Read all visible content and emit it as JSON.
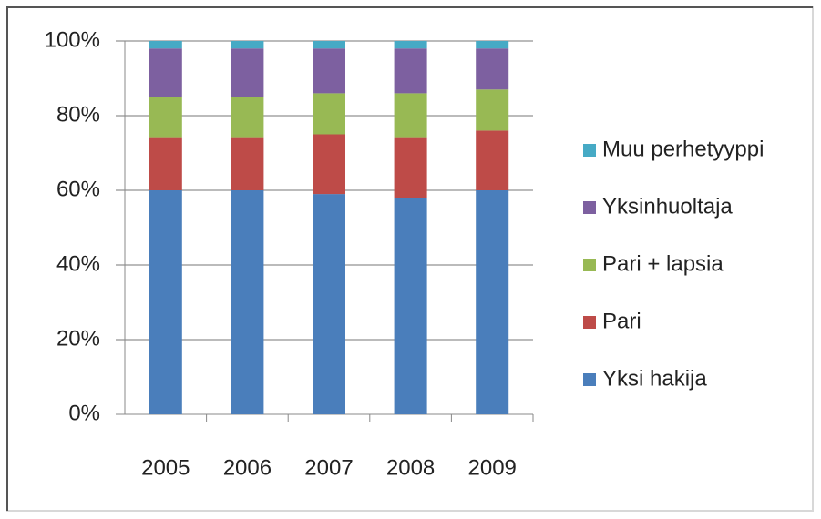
{
  "chart_data": {
    "type": "stacked_bar",
    "categories": [
      "2005",
      "2006",
      "2007",
      "2008",
      "2009"
    ],
    "series": [
      {
        "name": "Yksi hakija",
        "color": "#4a7ebb",
        "values": [
          60,
          60,
          59,
          58,
          60
        ]
      },
      {
        "name": "Pari",
        "color": "#be4b48",
        "values": [
          14,
          14,
          16,
          16,
          16
        ]
      },
      {
        "name": "Pari + lapsia",
        "color": "#98b954",
        "values": [
          11,
          11,
          11,
          12,
          11
        ]
      },
      {
        "name": "Yksinhuoltaja",
        "color": "#7d60a0",
        "values": [
          13,
          13,
          12,
          12,
          11
        ]
      },
      {
        "name": "Muu perhetyyppi",
        "color": "#46aac5",
        "values": [
          2,
          2,
          2,
          2,
          2
        ]
      }
    ],
    "ylim": [
      0,
      100
    ],
    "yticks": [
      {
        "value": 0,
        "label": "0%"
      },
      {
        "value": 20,
        "label": "20%"
      },
      {
        "value": 40,
        "label": "40%"
      },
      {
        "value": 60,
        "label": "60%"
      },
      {
        "value": 80,
        "label": "80%"
      },
      {
        "value": 100,
        "label": "100%"
      }
    ],
    "grid": true,
    "legend": "right"
  }
}
